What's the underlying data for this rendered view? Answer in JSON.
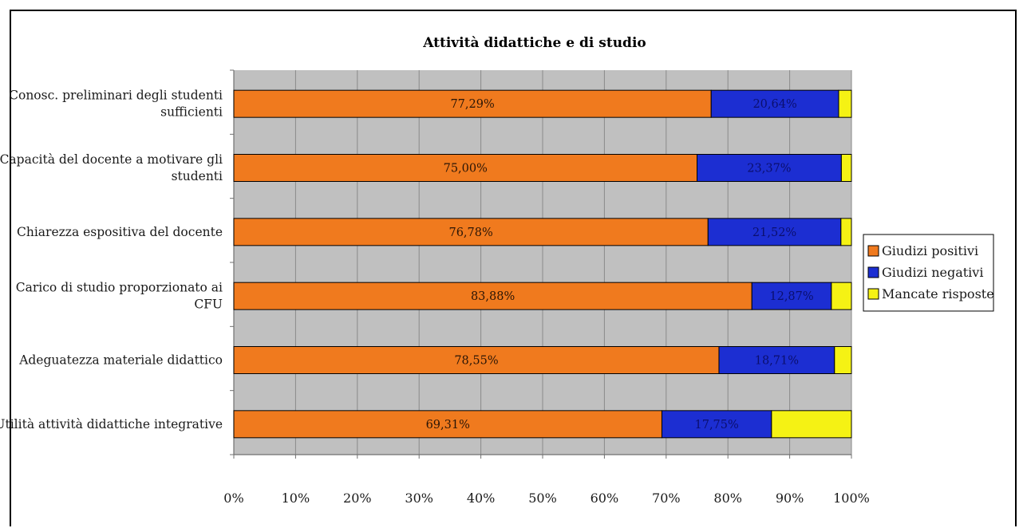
{
  "chart_data": {
    "type": "bar",
    "orientation": "horizontal",
    "stacked": true,
    "percent": true,
    "title": "Attività didattiche e di studio",
    "categories": [
      [
        "Conosc. preliminari degli studenti",
        "sufficienti"
      ],
      [
        "Capacità del docente a motivare gli",
        "studenti"
      ],
      [
        "Chiarezza espositiva del docente"
      ],
      [
        "Carico di studio proporzionato ai",
        "CFU"
      ],
      [
        "Adeguatezza materiale didattico"
      ],
      [
        "Utilità attività didattiche integrative"
      ]
    ],
    "series": [
      {
        "name": "Giudizi positivi",
        "color": "#f07a1e",
        "values": [
          77.29,
          75.0,
          76.78,
          83.88,
          78.55,
          69.31
        ],
        "labels": [
          "77,29%",
          "75,00%",
          "76,78%",
          "83,88%",
          "78,55%",
          "69,31%"
        ]
      },
      {
        "name": "Giudizi negativi",
        "color": "#1c2ed2",
        "values": [
          20.64,
          23.37,
          21.52,
          12.87,
          18.71,
          17.75
        ],
        "labels": [
          "20,64%",
          "23,37%",
          "21,52%",
          "12,87%",
          "18,71%",
          "17,75%"
        ]
      },
      {
        "name": "Mancate risposte",
        "color": "#f5f214",
        "values": [
          2.07,
          1.63,
          1.7,
          3.25,
          2.74,
          12.94
        ],
        "labels": []
      }
    ],
    "xlim": [
      0,
      100
    ],
    "xticks": [
      "0%",
      "10%",
      "20%",
      "30%",
      "40%",
      "50%",
      "60%",
      "70%",
      "80%",
      "90%",
      "100%"
    ],
    "plot_background": "#c0c0c0",
    "grid": true,
    "legend": "right"
  }
}
